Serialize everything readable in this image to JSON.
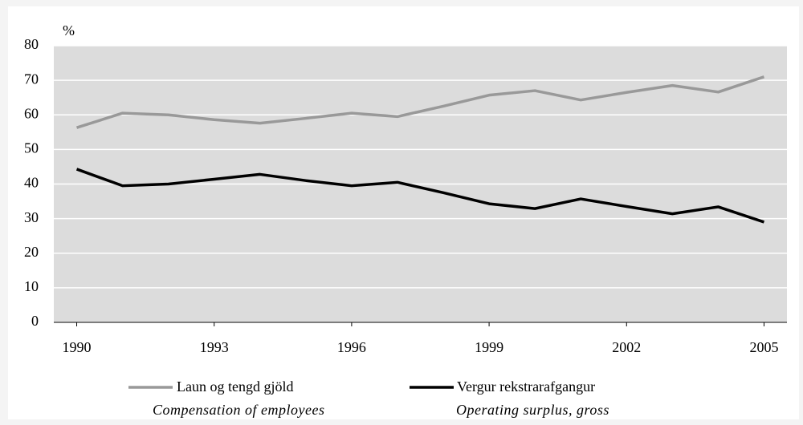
{
  "chart_data": {
    "type": "line",
    "ylabel": "%",
    "x": [
      1990,
      1991,
      1992,
      1993,
      1994,
      1995,
      1996,
      1997,
      1998,
      1999,
      2000,
      2001,
      2002,
      2003,
      2004,
      2005
    ],
    "series": [
      {
        "name": "Laun og tengd gjöld",
        "name_en": "Compensation of employees",
        "color": "#999999",
        "values": [
          56.3,
          60.5,
          60,
          58.6,
          57.6,
          59,
          60.5,
          59.5,
          62.5,
          65.7,
          67,
          64.3,
          66.5,
          68.5,
          66.6,
          71
        ]
      },
      {
        "name": "Vergur rekstrarafgangur",
        "name_en": "Operating surplus, gross",
        "color": "#000000",
        "values": [
          44.3,
          39.5,
          40,
          41.4,
          42.8,
          41,
          39.5,
          40.5,
          37.5,
          34.3,
          32.9,
          35.7,
          33.5,
          31.4,
          33.4,
          29
        ]
      }
    ],
    "xlim": [
      1989.5,
      2005.5
    ],
    "xticks": [
      1990,
      1993,
      1996,
      1999,
      2002,
      2005
    ],
    "ylim": [
      0,
      80
    ],
    "yticks": [
      0,
      10,
      20,
      30,
      40,
      50,
      60,
      70,
      80
    ],
    "grid": true
  }
}
